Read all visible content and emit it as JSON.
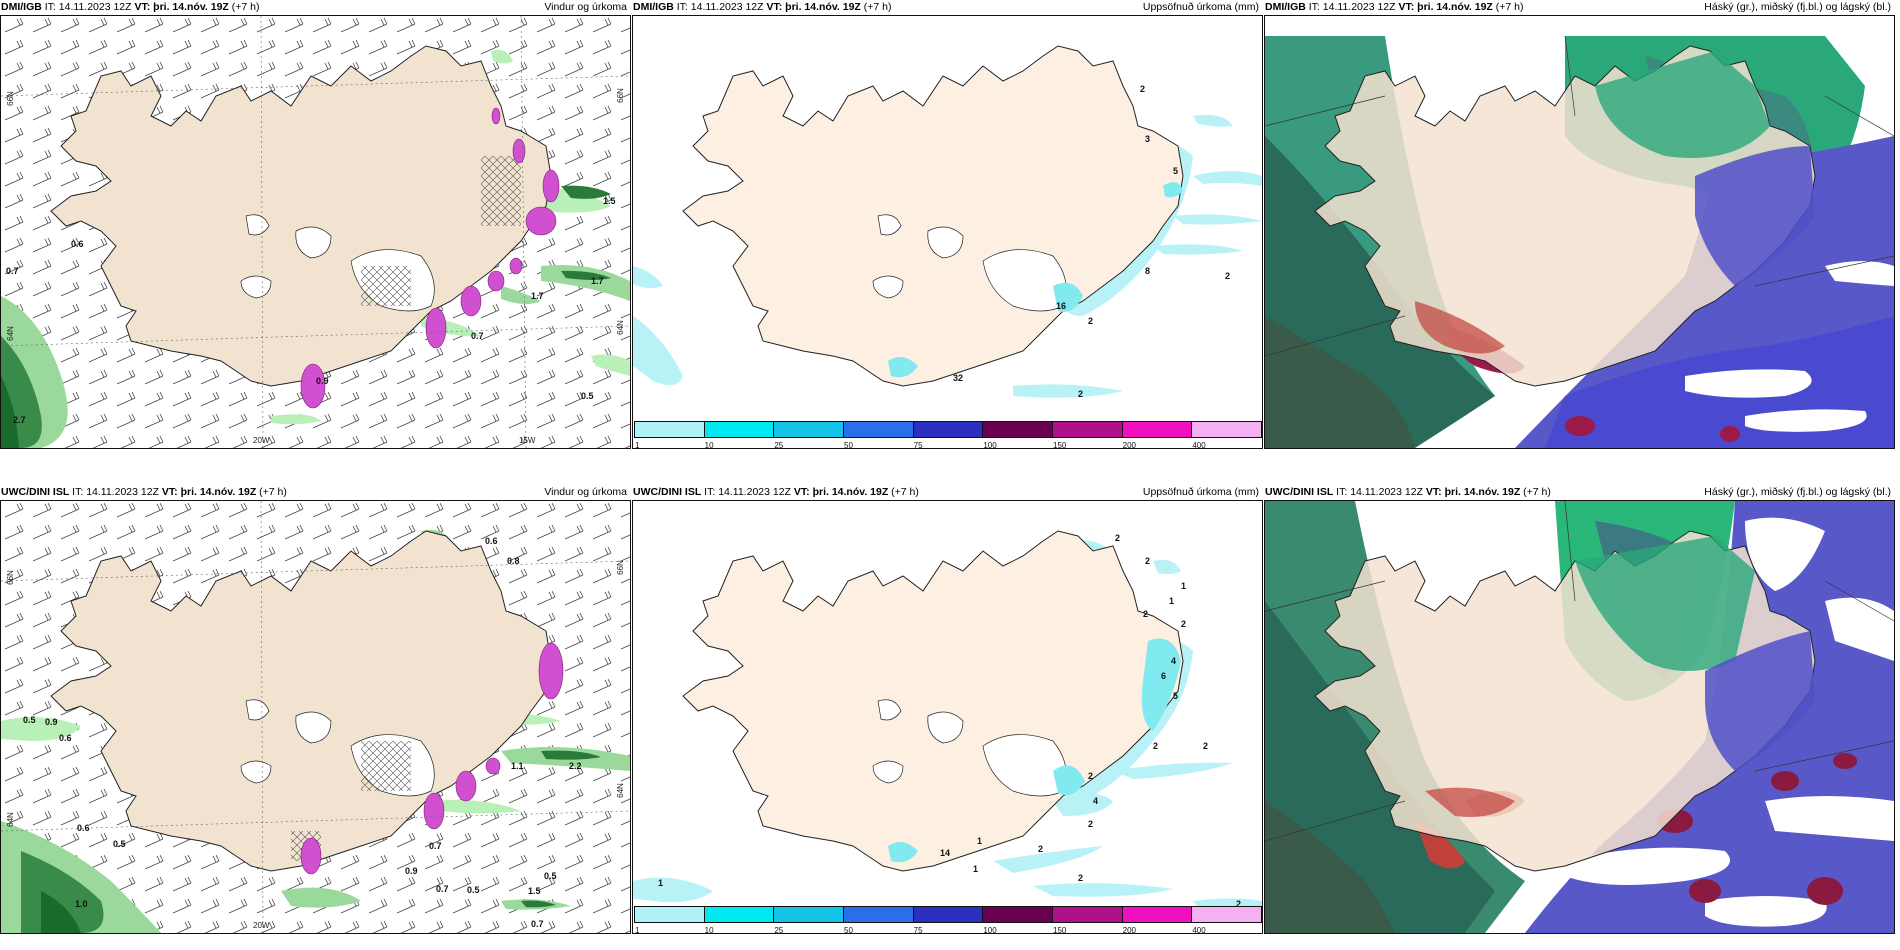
{
  "panels": [
    {
      "model": "DMI/IGB",
      "it_label": "IT:",
      "it_value": "14.11.2023 12Z",
      "vt_label": "VT:",
      "vt_value": "þri. 14.nóv. 19Z",
      "lead": "(+7 h)",
      "product": "Vindur og úrkoma",
      "lat_label": "66N",
      "lat_label2": "64N",
      "lon_labels": [
        "20W",
        "15W"
      ],
      "values": [
        "0.7",
        "2.7",
        "0.7",
        "0.6",
        "0.9",
        "0.5",
        "1.5",
        "1.7",
        "1.7"
      ]
    },
    {
      "model": "DMI/IGB",
      "it_label": "IT:",
      "it_value": "14.11.2023 12Z",
      "vt_label": "VT:",
      "vt_value": "þri. 14.nóv. 19Z",
      "lead": "(+7 h)",
      "product": "Uppsöfnuð úrkoma (mm)",
      "values": [
        "2",
        "3",
        "5",
        "2",
        "8",
        "2",
        "16",
        "32",
        "2"
      ]
    },
    {
      "model": "DMI/IGB",
      "it_label": "IT:",
      "it_value": "14.11.2023 12Z",
      "vt_label": "VT:",
      "vt_value": "þri. 14.nóv. 19Z",
      "lead": "(+7 h)",
      "product": "Háský (gr.), miðský (fj.bl.) og lágský (bl.)"
    },
    {
      "model": "UWC/DINI ISL",
      "it_label": "IT:",
      "it_value": "14.11.2023 12Z",
      "vt_label": "VT:",
      "vt_value": "þri. 14.nóv. 19Z",
      "lead": "(+7 h)",
      "product": "Vindur og úrkoma",
      "lat_label": "66N",
      "lat_label2": "64N",
      "lon_labels": [
        "20W"
      ],
      "values": [
        "0.6",
        "0.8",
        "0.5",
        "0.9",
        "0.6",
        "0.6",
        "0.5",
        "1.0",
        "0.5",
        "0.7",
        "0.9",
        "0.7",
        "0.5",
        "0.7",
        "1.5",
        "2.2",
        "1.1"
      ]
    },
    {
      "model": "UWC/DINI ISL",
      "it_label": "IT:",
      "it_value": "14.11.2023 12Z",
      "vt_label": "VT:",
      "vt_value": "þri. 14.nóv. 19Z",
      "lead": "(+7 h)",
      "product": "Uppsöfnuð úrkoma (mm)",
      "values": [
        "2",
        "2",
        "1",
        "2",
        "2",
        "4",
        "6",
        "5",
        "2",
        "2",
        "1",
        "2",
        "4",
        "2",
        "2",
        "2",
        "1",
        "1",
        "14",
        "1",
        "2"
      ]
    },
    {
      "model": "UWC/DINI ISL",
      "it_label": "IT:",
      "it_value": "14.11.2023 12Z",
      "vt_label": "VT:",
      "vt_value": "þri. 14.nóv. 19Z",
      "lead": "(+7 h)",
      "product": "Háský (gr.), miðský (fj.bl.) og lágský (bl.)"
    }
  ],
  "colorbar": {
    "ticks": [
      "1",
      "10",
      "25",
      "50",
      "75",
      "100",
      "150",
      "200",
      "400"
    ],
    "colors": [
      "#aef2f6",
      "#00e8f0",
      "#16c2e8",
      "#2a6fe8",
      "#2a2fc0",
      "#6a0050",
      "#b0108a",
      "#f010c0",
      "#f4b0f0"
    ]
  },
  "colors": {
    "land": "#f5e6d3",
    "ice": "#ffffff",
    "precip_light": "#b8f0b8",
    "precip_dark": "#1a6b2a",
    "high_cloud": "#20a080",
    "mid_cloud": "#5050c8",
    "low_cloud": "#3030a0",
    "magenta": "#d040d0"
  }
}
